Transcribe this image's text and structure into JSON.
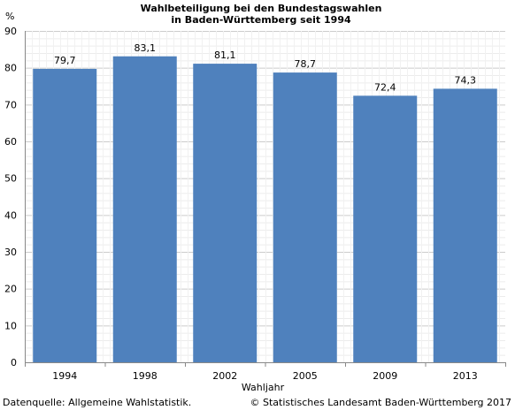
{
  "chart_data": {
    "type": "bar",
    "title_line1": "Wahlbeteiligung bei den Bundestagswahlen",
    "title_line2": "in Baden-Württemberg seit 1994",
    "ylabel": "%",
    "xlabel": "Wahljahr",
    "categories": [
      "1994",
      "1998",
      "2002",
      "2005",
      "2009",
      "2013"
    ],
    "values": [
      79.7,
      83.1,
      81.1,
      78.7,
      72.4,
      74.3
    ],
    "value_labels": [
      "79,7",
      "83,1",
      "81,1",
      "78,7",
      "72,4",
      "74,3"
    ],
    "ylim": [
      0,
      90
    ],
    "yticks": [
      0,
      10,
      20,
      30,
      40,
      50,
      60,
      70,
      80,
      90
    ],
    "grid": true,
    "bar_color": "#4f81bd"
  },
  "footer": {
    "source": "Datenquelle: Allgemeine Wahlstatistik.",
    "copyright": "© Statistisches Landesamt Baden-Württemberg 2017"
  }
}
